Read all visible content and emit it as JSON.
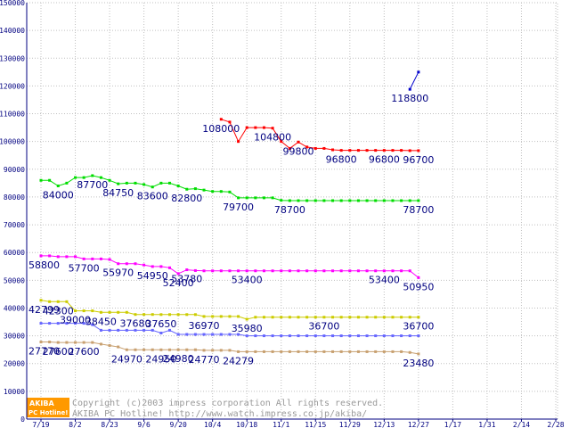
{
  "chart_data": {
    "type": "line",
    "title": "",
    "xlabel": "",
    "ylabel": "",
    "ylim": [
      0,
      150000
    ],
    "yticks": [
      0,
      10000,
      20000,
      30000,
      40000,
      50000,
      60000,
      70000,
      80000,
      90000,
      100000,
      110000,
      120000,
      130000,
      140000,
      150000
    ],
    "grid": true,
    "x_labels": [
      "7/19",
      "8/2",
      "8/23",
      "9/6",
      "9/20",
      "10/4",
      "10/18",
      "11/1",
      "11/15",
      "11/29",
      "12/13",
      "12/27",
      "1/17",
      "1/31",
      "2/14",
      "2/28"
    ],
    "x_label_index": [
      0,
      4,
      8,
      12,
      16,
      20,
      24,
      28,
      32,
      36,
      40,
      44,
      48,
      52,
      56,
      60
    ],
    "n_points": 61,
    "series": [
      {
        "color": "#ff0000",
        "values": [
          null,
          null,
          null,
          null,
          null,
          null,
          null,
          null,
          null,
          null,
          null,
          null,
          null,
          null,
          null,
          null,
          null,
          null,
          null,
          null,
          null,
          108000,
          107000,
          100000,
          105000,
          105000,
          105000,
          104800,
          100000,
          97500,
          99800,
          98000,
          97500,
          97500,
          97000,
          96800,
          96800,
          96800,
          96800,
          96800,
          96800,
          96800,
          96800,
          96700,
          96700,
          null,
          null,
          null,
          null,
          null,
          null,
          null,
          null,
          null,
          null,
          null,
          null,
          null,
          null,
          null,
          null
        ],
        "labels": [
          {
            "i": 21,
            "text": "108000"
          },
          {
            "i": 27,
            "text": "104800"
          },
          {
            "i": 30,
            "text": "99800"
          },
          {
            "i": 35,
            "text": "96800"
          },
          {
            "i": 40,
            "text": "96800"
          },
          {
            "i": 44,
            "text": "96700"
          }
        ]
      },
      {
        "color": "#00dd00",
        "values": [
          86000,
          86000,
          84000,
          85000,
          87000,
          87000,
          87700,
          87000,
          86000,
          84750,
          85000,
          85000,
          84500,
          83600,
          85000,
          85000,
          84000,
          82800,
          83000,
          82500,
          82000,
          82000,
          81800,
          79700,
          79700,
          79700,
          79700,
          79700,
          78800,
          78700,
          78700,
          78700,
          78700,
          78700,
          78700,
          78700,
          78700,
          78700,
          78700,
          78700,
          78700,
          78700,
          78700,
          78700,
          78700,
          null,
          null,
          null,
          null,
          null,
          null,
          null,
          null,
          null,
          null,
          null,
          null,
          null,
          null,
          null,
          null
        ],
        "labels": [
          {
            "i": 2,
            "text": "84000"
          },
          {
            "i": 6,
            "text": "87700"
          },
          {
            "i": 9,
            "text": "84750"
          },
          {
            "i": 13,
            "text": "83600"
          },
          {
            "i": 17,
            "text": "82800"
          },
          {
            "i": 23,
            "text": "79700"
          },
          {
            "i": 29,
            "text": "78700"
          },
          {
            "i": 44,
            "text": "78700"
          }
        ]
      },
      {
        "color": "#ff00ff",
        "values": [
          58800,
          58800,
          58500,
          58500,
          58500,
          57700,
          57700,
          57700,
          57500,
          55970,
          55970,
          55970,
          55500,
          54950,
          54950,
          54500,
          52400,
          53780,
          53500,
          53400,
          53400,
          53400,
          53400,
          53400,
          53400,
          53400,
          53400,
          53400,
          53400,
          53400,
          53400,
          53400,
          53400,
          53400,
          53400,
          53400,
          53400,
          53400,
          53400,
          53400,
          53400,
          53400,
          53400,
          53400,
          50950,
          null,
          null,
          null,
          null,
          null,
          null,
          null,
          null,
          null,
          null,
          null,
          null,
          null,
          null,
          null,
          null
        ],
        "labels": [
          {
            "i": 0,
            "text": "58800"
          },
          {
            "i": 5,
            "text": "57700"
          },
          {
            "i": 9,
            "text": "55970"
          },
          {
            "i": 13,
            "text": "54950"
          },
          {
            "i": 16,
            "text": "52400"
          },
          {
            "i": 17,
            "text": "53780"
          },
          {
            "i": 24,
            "text": "53400"
          },
          {
            "i": 40,
            "text": "53400"
          },
          {
            "i": 44,
            "text": "50950"
          }
        ]
      },
      {
        "color": "#cccc00",
        "values": [
          42799,
          42300,
          42300,
          42300,
          39000,
          39000,
          39000,
          38450,
          38450,
          38450,
          38450,
          37680,
          37680,
          37680,
          37650,
          37650,
          37650,
          37650,
          37650,
          36970,
          36970,
          36970,
          36970,
          36970,
          35980,
          36700,
          36700,
          36700,
          36700,
          36700,
          36700,
          36700,
          36700,
          36700,
          36700,
          36700,
          36700,
          36700,
          36700,
          36700,
          36700,
          36700,
          36700,
          36700,
          36700,
          null,
          null,
          null,
          null,
          null,
          null,
          null,
          null,
          null,
          null,
          null,
          null,
          null,
          null,
          null,
          null
        ],
        "labels": [
          {
            "i": 0,
            "text": "42799"
          },
          {
            "i": 2,
            "text": "42300"
          },
          {
            "i": 4,
            "text": "39000"
          },
          {
            "i": 7,
            "text": "38450"
          },
          {
            "i": 11,
            "text": "37680"
          },
          {
            "i": 14,
            "text": "37650"
          },
          {
            "i": 19,
            "text": "36970"
          },
          {
            "i": 24,
            "text": "35980"
          },
          {
            "i": 33,
            "text": "36700"
          },
          {
            "i": 44,
            "text": "36700"
          }
        ]
      },
      {
        "color": "#6666ff",
        "values": [
          34500,
          34500,
          34500,
          34500,
          34500,
          34500,
          34000,
          32000,
          32000,
          32000,
          32000,
          32000,
          32000,
          32000,
          31000,
          32000,
          30500,
          30500,
          30500,
          30500,
          30500,
          30500,
          30500,
          30500,
          30000,
          30000,
          30000,
          30000,
          30000,
          30000,
          30000,
          30000,
          30000,
          30000,
          30000,
          30000,
          30000,
          30000,
          30000,
          30000,
          30000,
          30000,
          30000,
          30000,
          30000,
          null,
          null,
          null,
          null,
          null,
          null,
          null,
          null,
          null,
          null,
          null,
          null,
          null,
          null,
          null,
          null
        ],
        "labels": []
      },
      {
        "color": "#c8a070",
        "values": [
          27770,
          27770,
          27600,
          27600,
          27600,
          27600,
          27600,
          27000,
          26500,
          26000,
          24970,
          24970,
          24970,
          24970,
          24950,
          24950,
          24980,
          24980,
          24980,
          24770,
          24770,
          24770,
          24770,
          24279,
          24279,
          24279,
          24279,
          24279,
          24279,
          24279,
          24279,
          24279,
          24279,
          24279,
          24279,
          24279,
          24279,
          24279,
          24279,
          24279,
          24279,
          24279,
          24279,
          24000,
          23480,
          null,
          null,
          null,
          null,
          null,
          null,
          null,
          null,
          null,
          null,
          null,
          null,
          null,
          null,
          null,
          null
        ],
        "labels": [
          {
            "i": 0,
            "text": "27770"
          },
          {
            "i": 2,
            "text": "27600"
          },
          {
            "i": 5,
            "text": "27600"
          },
          {
            "i": 10,
            "text": "24970"
          },
          {
            "i": 14,
            "text": "24950"
          },
          {
            "i": 16,
            "text": "24980"
          },
          {
            "i": 19,
            "text": "24770"
          },
          {
            "i": 23,
            "text": "24279"
          },
          {
            "i": 44,
            "text": "23480"
          }
        ]
      },
      {
        "color": "#0000cc",
        "values": [
          null,
          null,
          null,
          null,
          null,
          null,
          null,
          null,
          null,
          null,
          null,
          null,
          null,
          null,
          null,
          null,
          null,
          null,
          null,
          null,
          null,
          null,
          null,
          null,
          null,
          null,
          null,
          null,
          null,
          null,
          null,
          null,
          null,
          null,
          null,
          null,
          null,
          null,
          null,
          null,
          null,
          null,
          null,
          118800,
          125000,
          null,
          null,
          null,
          null,
          null,
          null,
          null,
          null,
          null,
          null,
          null,
          null,
          null,
          null,
          null,
          null
        ],
        "labels": [
          {
            "i": 43,
            "text": "118800"
          }
        ]
      }
    ]
  },
  "watermark": {
    "logo_top": "AKIBA",
    "logo_bottom": "PC Hotline!",
    "line1": "Copyright (c)2003 impress corporation All rights reserved.",
    "line2": "AKIBA PC Hotline!  http://www.watch.impress.co.jp/akiba/"
  },
  "colors": {
    "axis": "#000080",
    "grid": "#c0c0c0",
    "logo_bg": "#ff9900"
  }
}
